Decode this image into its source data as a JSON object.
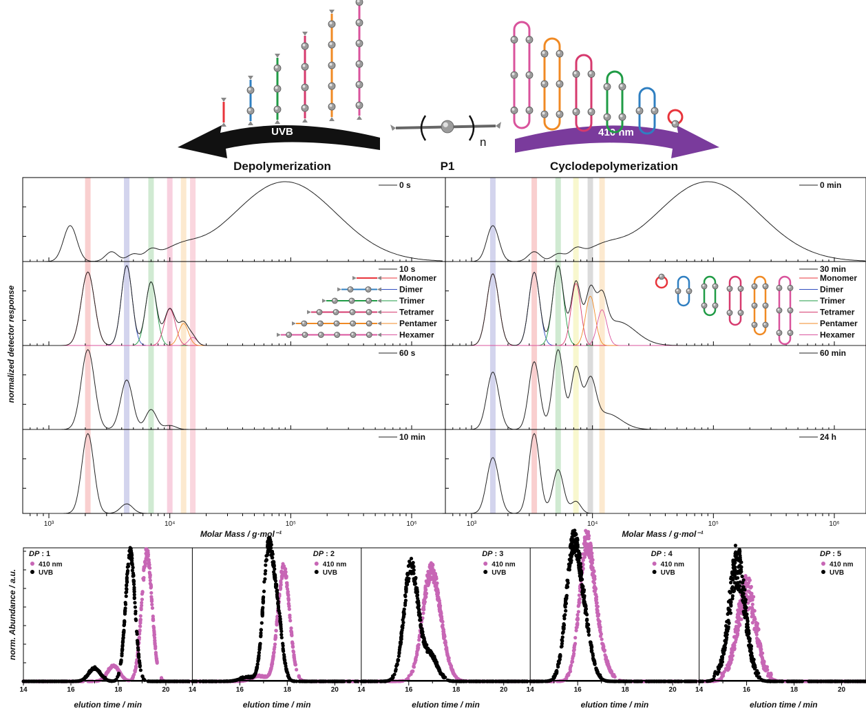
{
  "scheme": {
    "left_arrow_label": "UVB",
    "right_arrow_label": "410 nm",
    "left_title": "Depolymerization",
    "center_label": "P1",
    "center_subscript": "n",
    "right_title": "Cyclodepolymerization",
    "linear_colors": [
      "#e8343b",
      "#2f7fc1",
      "#1f9b45",
      "#d63a6e",
      "#f08a24",
      "#d9539c"
    ],
    "cyclic_colors": [
      "#d9539c",
      "#f08a24",
      "#d63a6e",
      "#1f9b45",
      "#2f7fc1",
      "#e8343b"
    ],
    "arrow_colors": {
      "uvb": "#111111",
      "violet": "#7a3b9c"
    }
  },
  "chart_data": [
    {
      "id": "sec_uvb",
      "type": "line",
      "ylabel": "normalized detector response",
      "xlabel": "Molar Mass / g·mol⁻¹",
      "xscale": "log",
      "xlim": [
        700,
        1800000
      ],
      "xticks": [
        "10³",
        "10⁴",
        "10⁵",
        "10⁶"
      ],
      "band_masses": [
        2100,
        4400,
        7000,
        10000,
        13000,
        15500
      ],
      "band_colors": [
        "#f4a7a7",
        "#aeb0de",
        "#a9d9ad",
        "#f3a9c5",
        "#fad7a7",
        "#f6b4c3"
      ],
      "panels": [
        {
          "label": "0 s",
          "peaks": [
            [
              1500,
              0.45,
              0.055
            ],
            [
              3300,
              0.12,
              0.05
            ],
            [
              5000,
              0.08,
              0.05
            ],
            [
              7000,
              0.1,
              0.05
            ],
            [
              90000,
              1.0,
              0.42
            ],
            [
              12000,
              0.12,
              0.15
            ]
          ]
        },
        {
          "label": "10 s",
          "peaks": [
            [
              2100,
              0.9,
              0.055
            ],
            [
              4400,
              0.98,
              0.045
            ],
            [
              7000,
              0.78,
              0.045
            ],
            [
              10000,
              0.45,
              0.045
            ],
            [
              13000,
              0.27,
              0.04
            ],
            [
              15500,
              0.1,
              0.035
            ]
          ],
          "show_components": true
        },
        {
          "label": "60 s",
          "peaks": [
            [
              2100,
              1.0,
              0.055
            ],
            [
              4400,
              0.62,
              0.05
            ],
            [
              7000,
              0.25,
              0.045
            ],
            [
              10000,
              0.05,
              0.05
            ]
          ]
        },
        {
          "label": "10 min",
          "peaks": [
            [
              2100,
              1.0,
              0.05
            ],
            [
              4400,
              0.12,
              0.05
            ]
          ]
        }
      ],
      "legend": [
        "Monomer",
        "Dimer",
        "Trimer",
        "Tetramer",
        "Pentamer",
        "Hexamer"
      ],
      "legend_colors": [
        "#e8343b",
        "#2f4dbf",
        "#1f9b45",
        "#d63a6e",
        "#f08a24",
        "#d9539c"
      ]
    },
    {
      "id": "sec_410",
      "type": "line",
      "xlabel": "Molar Mass / g·mol⁻¹",
      "xscale": "log",
      "xlim": [
        700,
        1800000
      ],
      "xticks": [
        "10³",
        "10⁴",
        "10⁵",
        "10⁶"
      ],
      "band_masses": [
        1500,
        3300,
        5200,
        7300,
        9600,
        12000
      ],
      "band_colors": [
        "#aeb0de",
        "#f4a7a7",
        "#a9d9ad",
        "#f2f0a6",
        "#bdbdbd",
        "#fad7a7"
      ],
      "panels": [
        {
          "label": "0 min",
          "peaks": [
            [
              1500,
              0.45,
              0.05
            ],
            [
              3300,
              0.12,
              0.05
            ],
            [
              5200,
              0.08,
              0.05
            ],
            [
              7300,
              0.1,
              0.05
            ],
            [
              90000,
              1.0,
              0.42
            ],
            [
              12000,
              0.12,
              0.15
            ]
          ]
        },
        {
          "label": "30 min",
          "peaks": [
            [
              1500,
              0.9,
              0.05
            ],
            [
              3300,
              0.92,
              0.045
            ],
            [
              5200,
              1.0,
              0.045
            ],
            [
              7300,
              0.78,
              0.04
            ],
            [
              9600,
              0.62,
              0.04
            ],
            [
              12000,
              0.45,
              0.04
            ],
            [
              16000,
              0.3,
              0.15
            ]
          ],
          "show_components": true
        },
        {
          "label": "60 min",
          "peaks": [
            [
              1500,
              0.72,
              0.05
            ],
            [
              3300,
              0.85,
              0.045
            ],
            [
              5200,
              1.0,
              0.045
            ],
            [
              7300,
              0.75,
              0.04
            ],
            [
              9600,
              0.55,
              0.045
            ],
            [
              13000,
              0.2,
              0.12
            ]
          ]
        },
        {
          "label": "24 h",
          "peaks": [
            [
              1500,
              0.7,
              0.05
            ],
            [
              3300,
              1.0,
              0.045
            ],
            [
              5200,
              0.55,
              0.045
            ],
            [
              7300,
              0.15,
              0.04
            ]
          ]
        }
      ],
      "legend": [
        "Monomer",
        "Dimer",
        "Trimer",
        "Tetramer",
        "Pentamer",
        "Hexamer"
      ],
      "legend_colors": [
        "#e8343b",
        "#2f4dbf",
        "#1f9b45",
        "#d63a6e",
        "#f08a24",
        "#d9539c"
      ]
    },
    {
      "id": "lcms",
      "type": "scatter",
      "ylabel": "norm. Abundance / a.u.",
      "xlabel": "elution time / min",
      "xlim": [
        14,
        21
      ],
      "xticks": [
        14,
        16,
        18,
        20
      ],
      "dp_prefix": "DP",
      "series_names": [
        "410 nm",
        "UVB"
      ],
      "series_colors": [
        "#c766b5",
        "#000000"
      ],
      "panels": [
        {
          "dp": "1",
          "peaks410": [
            [
              19.2,
              1.0,
              0.22
            ],
            [
              17.8,
              0.12,
              0.25
            ]
          ],
          "peaksUVB": [
            [
              18.5,
              1.0,
              0.2
            ],
            [
              17.0,
              0.1,
              0.25
            ]
          ],
          "noise": 0.05
        },
        {
          "dp": "2",
          "peaks410": [
            [
              17.85,
              0.88,
              0.25
            ],
            [
              16.8,
              0.04,
              0.3
            ]
          ],
          "peaksUVB": [
            [
              17.2,
              1.0,
              0.22
            ],
            [
              17.6,
              0.45,
              0.2
            ],
            [
              16.3,
              0.03,
              0.3
            ]
          ],
          "noise": 0.05
        },
        {
          "dp": "3",
          "peaks410": [
            [
              16.9,
              0.75,
              0.35
            ],
            [
              17.3,
              0.2,
              0.35
            ]
          ],
          "peaksUVB": [
            [
              16.1,
              0.9,
              0.3
            ],
            [
              16.9,
              0.2,
              0.3
            ]
          ],
          "noise": 0.08
        },
        {
          "dp": "4",
          "peaks410": [
            [
              16.35,
              0.95,
              0.3
            ],
            [
              16.8,
              0.3,
              0.35
            ]
          ],
          "peaksUVB": [
            [
              15.8,
              1.0,
              0.3
            ],
            [
              16.3,
              0.35,
              0.3
            ]
          ],
          "noise": 0.09
        },
        {
          "dp": "5",
          "peaks410": [
            [
              16.0,
              0.7,
              0.4
            ]
          ],
          "peaksUVB": [
            [
              15.6,
              0.9,
              0.35
            ]
          ],
          "noise": 0.2
        }
      ]
    }
  ]
}
